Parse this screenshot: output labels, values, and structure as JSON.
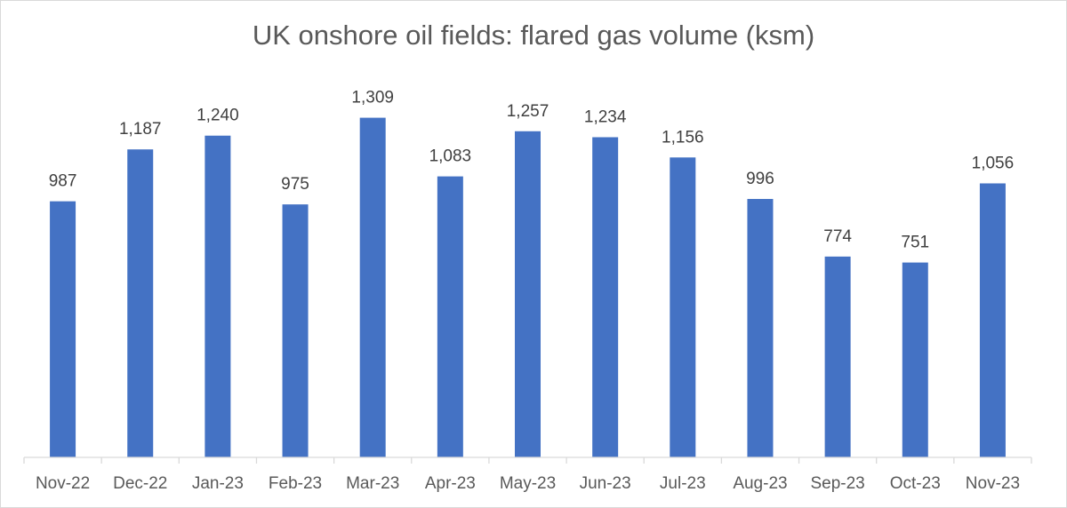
{
  "chart_data": {
    "type": "bar",
    "title": "UK onshore oil fields: flared gas volume (ksm)",
    "categories": [
      "Nov-22",
      "Dec-22",
      "Jan-23",
      "Feb-23",
      "Mar-23",
      "Apr-23",
      "May-23",
      "Jun-23",
      "Jul-23",
      "Aug-23",
      "Sep-23",
      "Oct-23",
      "Nov-23"
    ],
    "values": [
      987,
      1187,
      1240,
      975,
      1309,
      1083,
      1257,
      1234,
      1156,
      996,
      774,
      751,
      1056
    ],
    "data_labels": [
      "987",
      "1,187",
      "1,240",
      "975",
      "1,309",
      "1,083",
      "1,257",
      "1,234",
      "1,156",
      "996",
      "774",
      "751",
      "1,056"
    ],
    "ylim": [
      0,
      1400
    ],
    "grid": false,
    "legend": "none",
    "bar_color": "#4472C4"
  }
}
